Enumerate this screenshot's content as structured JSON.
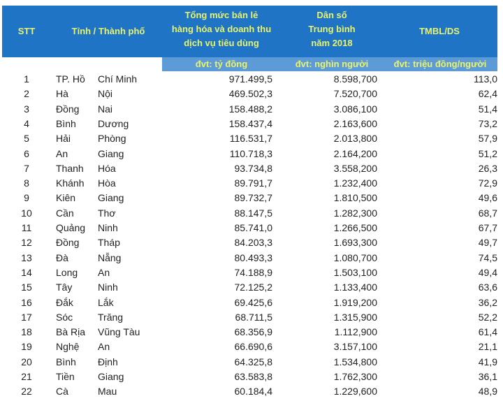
{
  "header": {
    "stt": "STT",
    "province": "Tỉnh / Thành phố",
    "retail": [
      "Tổng mức bán lẻ",
      "hàng hóa và doanh thu",
      "dịch vụ tiêu dùng"
    ],
    "population": [
      "Dân số",
      "Trung bình",
      "năm 2018"
    ],
    "ratio": "TMBL/DS",
    "units": {
      "retail": "đvt: tỷ đồng",
      "population": "đvt: nghìn người",
      "ratio": "đvt: triệu đồng/người"
    }
  },
  "colors": {
    "header_bg": "#1f74c6",
    "subheader_bg": "#5d9ad8",
    "header_text": "#e9f36b"
  },
  "rows": [
    {
      "stt": "1",
      "a": "TP. Hồ",
      "b": "Chí Minh",
      "retail": "971.499,5",
      "pop": "8.598,700",
      "ratio": "113,0"
    },
    {
      "stt": "2",
      "a": "Hà",
      "b": "Nội",
      "retail": "469.502,3",
      "pop": "7.520,700",
      "ratio": "62,4"
    },
    {
      "stt": "3",
      "a": "Đồng",
      "b": "Nai",
      "retail": "158.488,2",
      "pop": "3.086,100",
      "ratio": "51,4"
    },
    {
      "stt": "4",
      "a": "Bình",
      "b": "Dương",
      "retail": "158.437,4",
      "pop": "2.163,600",
      "ratio": "73,2"
    },
    {
      "stt": "5",
      "a": "Hải",
      "b": "Phòng",
      "retail": "116.531,7",
      "pop": "2.013,800",
      "ratio": "57,9"
    },
    {
      "stt": "6",
      "a": "An",
      "b": "Giang",
      "retail": "110.718,3",
      "pop": "2.164,200",
      "ratio": "51,2"
    },
    {
      "stt": "7",
      "a": "Thanh",
      "b": "Hóa",
      "retail": "93.734,8",
      "pop": "3.558,200",
      "ratio": "26,3"
    },
    {
      "stt": "8",
      "a": "Khánh",
      "b": "Hòa",
      "retail": "89.791,7",
      "pop": "1.232,400",
      "ratio": "72,9"
    },
    {
      "stt": "9",
      "a": "Kiên",
      "b": "Giang",
      "retail": "89.732,7",
      "pop": "1.810,500",
      "ratio": "49,6"
    },
    {
      "stt": "10",
      "a": "Cần",
      "b": "Thơ",
      "retail": "88.147,5",
      "pop": "1.282,300",
      "ratio": "68,7"
    },
    {
      "stt": "11",
      "a": "Quảng",
      "b": "Ninh",
      "retail": "85.741,0",
      "pop": "1.266,500",
      "ratio": "67,7"
    },
    {
      "stt": "12",
      "a": "Đồng",
      "b": "Tháp",
      "retail": "84.203,3",
      "pop": "1.693,300",
      "ratio": "49,7"
    },
    {
      "stt": "13",
      "a": "Đà",
      "b": "Nẵng",
      "retail": "80.493,3",
      "pop": "1.080,700",
      "ratio": "74,5"
    },
    {
      "stt": "14",
      "a": "Long",
      "b": "An",
      "retail": "74.188,9",
      "pop": "1.503,100",
      "ratio": "49,4"
    },
    {
      "stt": "15",
      "a": "Tây",
      "b": "Ninh",
      "retail": "72.125,2",
      "pop": "1.133,400",
      "ratio": "63,6"
    },
    {
      "stt": "16",
      "a": "Đắk",
      "b": "Lắk",
      "retail": "69.425,6",
      "pop": "1.919,200",
      "ratio": "36,2"
    },
    {
      "stt": "17",
      "a": "Sóc",
      "b": "Trăng",
      "retail": "68.711,5",
      "pop": "1.315,900",
      "ratio": "52,2"
    },
    {
      "stt": "18",
      "a": "Bà Rịa",
      "b": "Vũng Tàu",
      "retail": "68.356,9",
      "pop": "1.112,900",
      "ratio": "61,4"
    },
    {
      "stt": "19",
      "a": "Nghệ",
      "b": "An",
      "retail": "66.690,6",
      "pop": "3.157,100",
      "ratio": "21,1"
    },
    {
      "stt": "20",
      "a": "Bình",
      "b": "Định",
      "retail": "64.325,8",
      "pop": "1.534,800",
      "ratio": "41,9"
    },
    {
      "stt": "21",
      "a": "Tiền",
      "b": "Giang",
      "retail": "63.583,8",
      "pop": "1.762,300",
      "ratio": "36,1"
    },
    {
      "stt": "22",
      "a": "Cà",
      "b": "Mau",
      "retail": "60.184,4",
      "pop": "1.229,600",
      "ratio": "48,9"
    }
  ]
}
